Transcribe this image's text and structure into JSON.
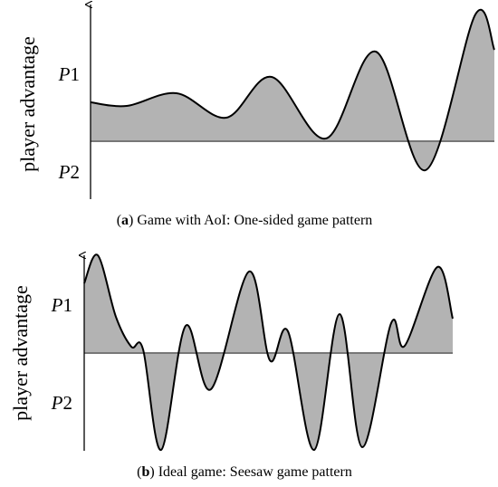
{
  "panels": [
    {
      "y_label": "player advantage",
      "ticks": [
        [
          "P",
          "1"
        ],
        [
          "P",
          "2"
        ]
      ],
      "caption": [
        "(",
        "a",
        ") Game with AoI: One-sided game pattern"
      ]
    },
    {
      "y_label": "player advantage",
      "ticks": [
        [
          "P",
          "1"
        ],
        [
          "P",
          "2"
        ]
      ],
      "caption": [
        "(",
        "b",
        ") Ideal game: Seesaw game pattern"
      ]
    }
  ]
}
